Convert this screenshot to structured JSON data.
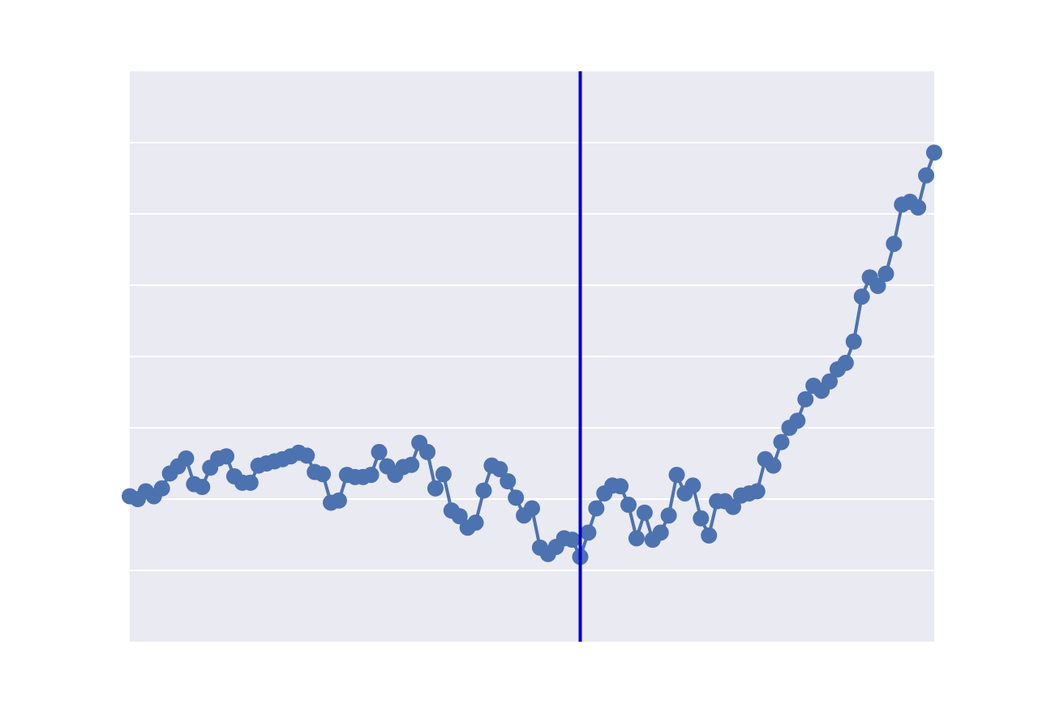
{
  "chart_data": {
    "type": "line",
    "title": "",
    "xlabel": "",
    "ylabel": "",
    "grid": true,
    "legend": "none",
    "xlim": [
      0,
      100
    ],
    "ylim": [
      -1.0,
      7.0
    ],
    "ygrid": [
      0,
      1,
      2,
      3,
      4,
      5,
      6
    ],
    "vline_x": 56,
    "colors": {
      "series": "#4c72b0",
      "vline": "#0000cc",
      "background": "#eaeaf2",
      "grid": "#ffffff"
    },
    "series": [
      {
        "values": [
          1.04,
          1.0,
          1.11,
          1.04,
          1.15,
          1.36,
          1.46,
          1.57,
          1.21,
          1.17,
          1.44,
          1.57,
          1.6,
          1.32,
          1.23,
          1.23,
          1.47,
          1.5,
          1.53,
          1.56,
          1.6,
          1.65,
          1.61,
          1.38,
          1.35,
          0.95,
          0.98,
          1.34,
          1.31,
          1.31,
          1.34,
          1.66,
          1.46,
          1.34,
          1.45,
          1.48,
          1.79,
          1.66,
          1.15,
          1.35,
          0.84,
          0.76,
          0.6,
          0.67,
          1.12,
          1.47,
          1.42,
          1.25,
          1.02,
          0.77,
          0.87,
          0.32,
          0.23,
          0.33,
          0.45,
          0.43,
          0.19,
          0.53,
          0.87,
          1.08,
          1.19,
          1.18,
          0.92,
          0.45,
          0.81,
          0.43,
          0.53,
          0.77,
          1.34,
          1.08,
          1.19,
          0.73,
          0.49,
          0.97,
          0.97,
          0.89,
          1.05,
          1.08,
          1.11,
          1.56,
          1.47,
          1.8,
          2.0,
          2.1,
          2.4,
          2.59,
          2.52,
          2.65,
          2.82,
          2.91,
          3.21,
          3.84,
          4.11,
          3.99,
          4.16,
          4.58,
          5.13,
          5.17,
          5.09,
          5.54,
          5.86
        ]
      }
    ]
  }
}
